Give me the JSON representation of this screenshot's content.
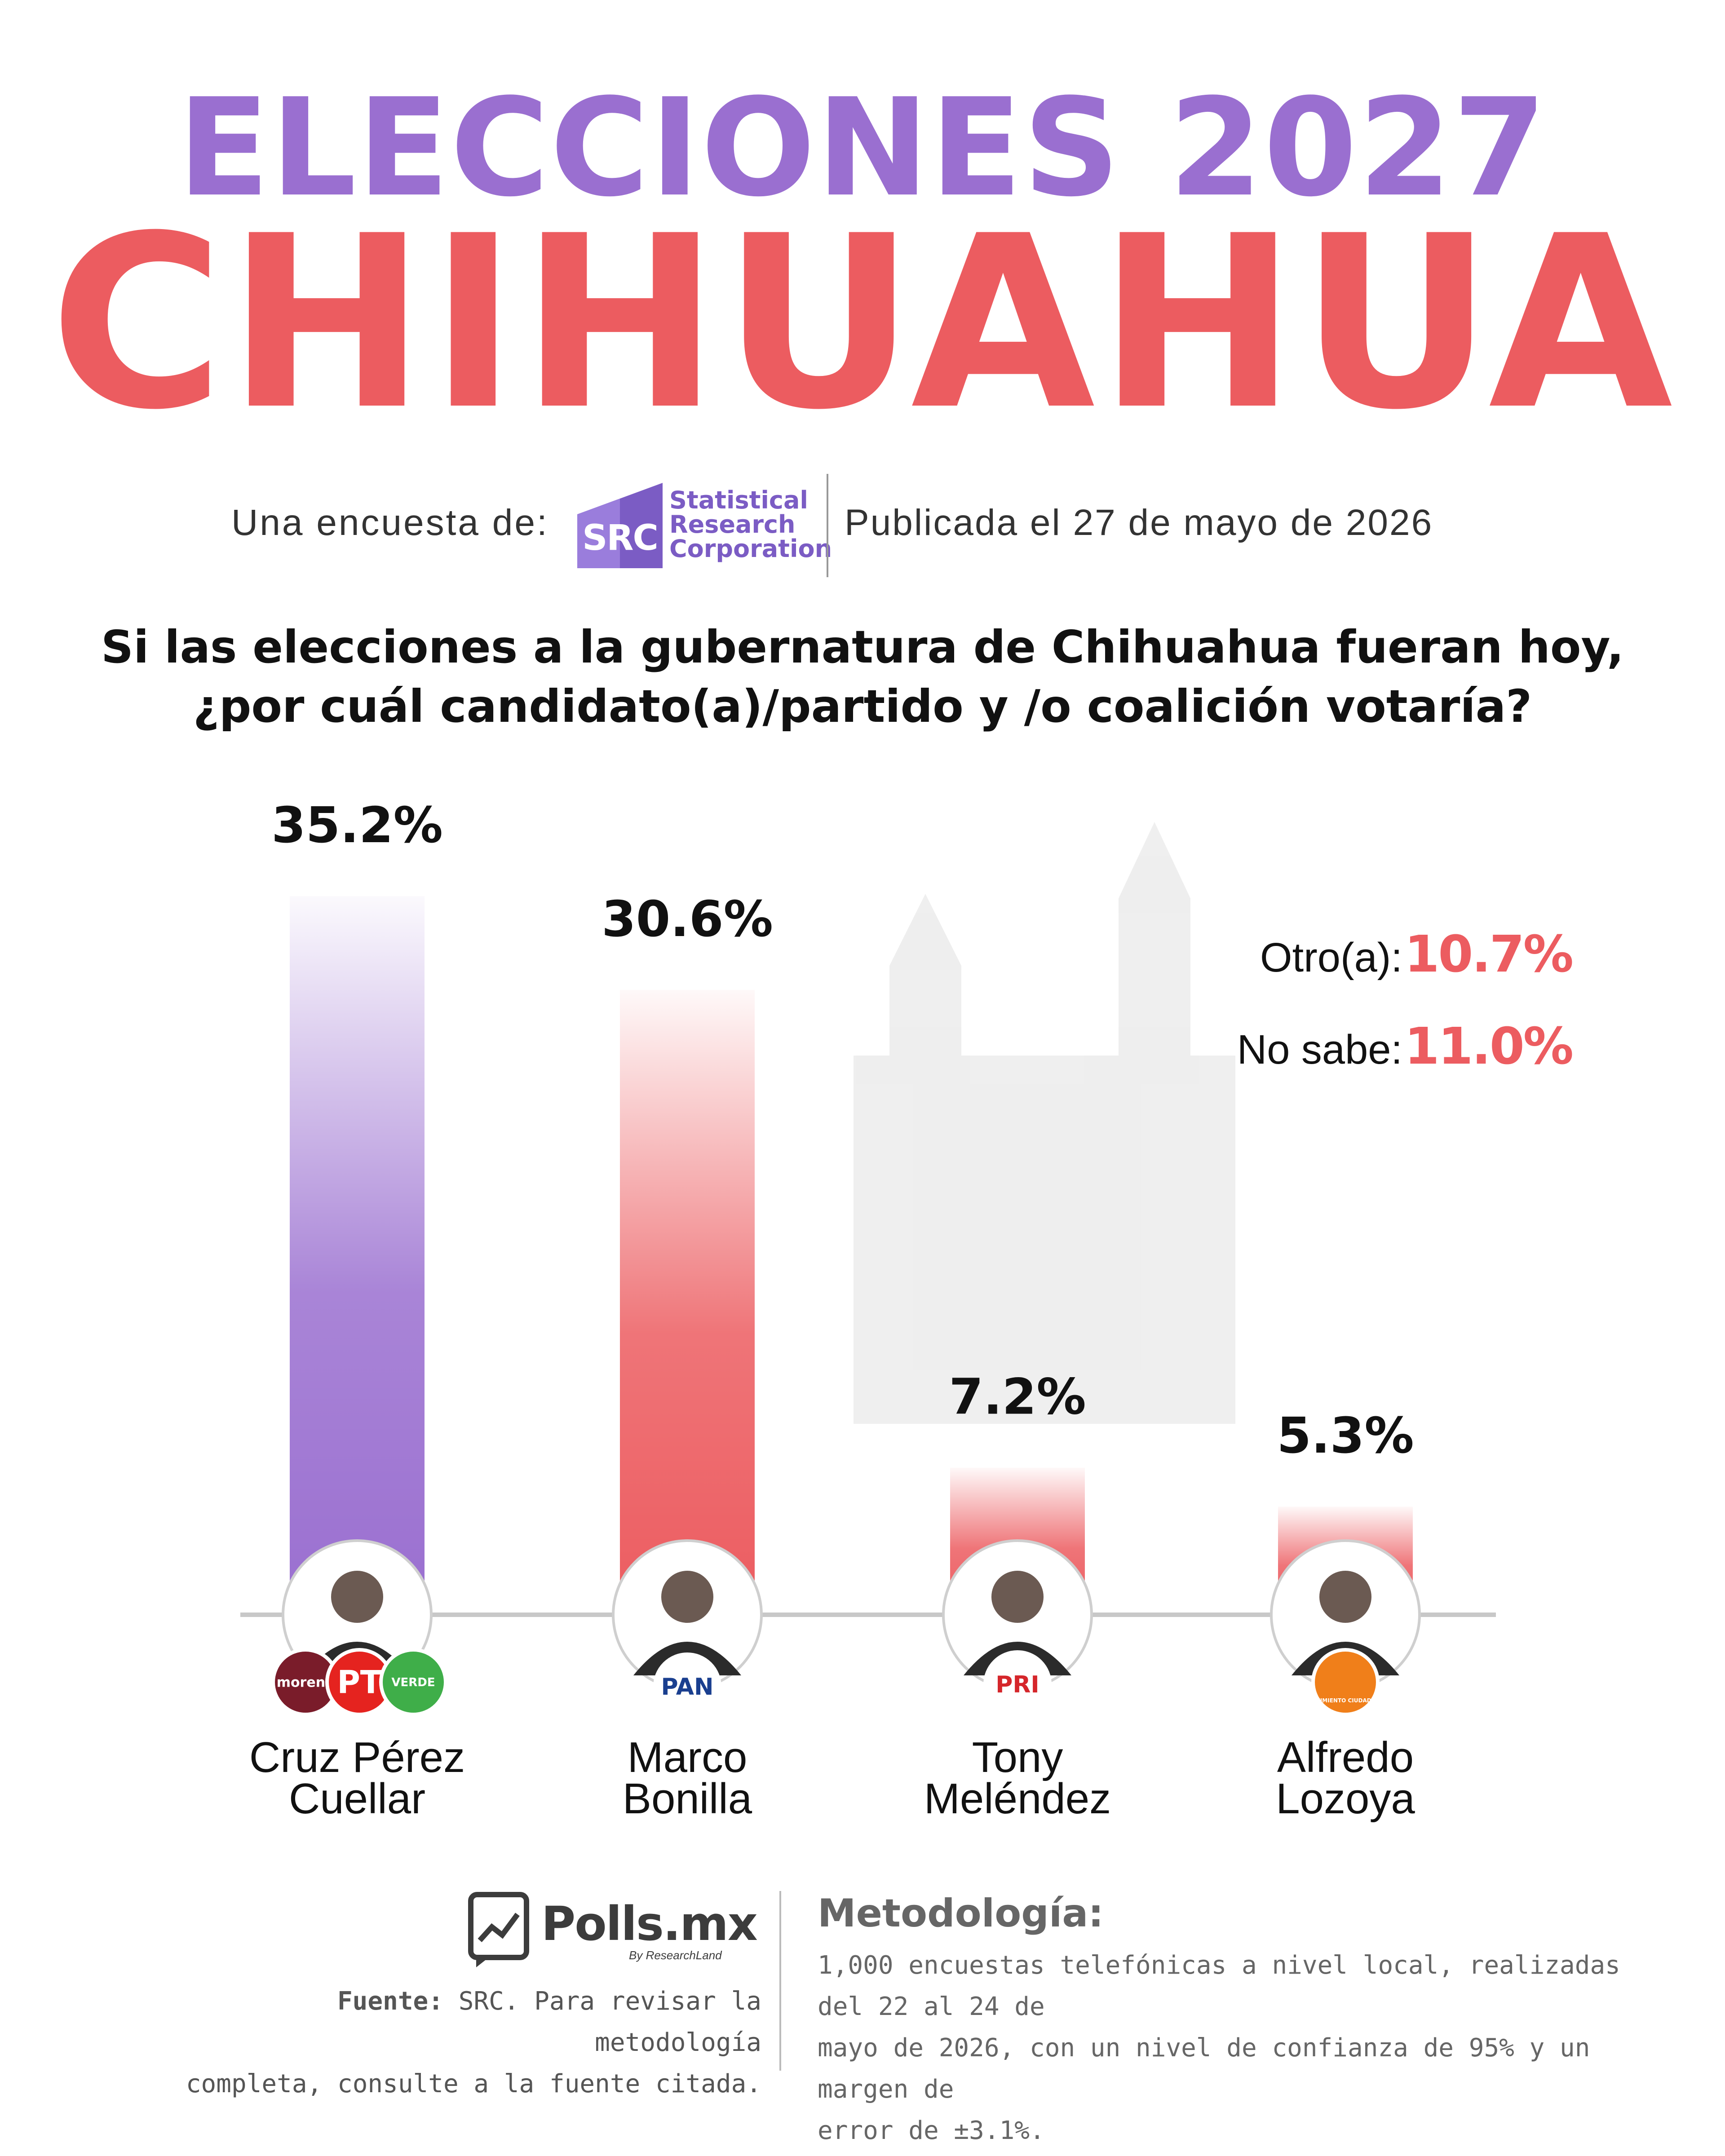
{
  "header": {
    "title_top": "ELECCIONES 2027",
    "title_main": "CHIHUAHUA"
  },
  "byline": {
    "label": "Una encuesta de:",
    "pollster_abbr": "SRC",
    "pollster_name_1": "Statistical",
    "pollster_name_2": "Research",
    "pollster_name_3": "Corporation",
    "published": "Publicada el 27 de mayo de 2026"
  },
  "question": {
    "line1": "Si las elecciones a la gubernatura de Chihuahua fueran hoy,",
    "line2": "¿por cuál candidato(a)/partido y /o coalición votaría?"
  },
  "others": {
    "other_label": "Otro(a):",
    "other_value": "10.7%",
    "unknown_label": "No sabe:",
    "unknown_value": "11.0%"
  },
  "colors": {
    "purple": "#9a6fd0",
    "red": "#ec5c60",
    "morena": "#7a1c2a",
    "pt": "#e5231f",
    "verde": "#3fae49",
    "pan": "#1a3f8f",
    "pri": "#d5262b",
    "mc": "#f07f1a"
  },
  "chart_data": {
    "type": "bar",
    "categories": [
      "Cruz Pérez Cuellar",
      "Marco Bonilla",
      "Tony Meléndez",
      "Alfredo Lozoya"
    ],
    "values": [
      35.2,
      30.6,
      7.2,
      5.3
    ],
    "value_labels": [
      "35.2%",
      "30.6%",
      "7.2%",
      "5.3%"
    ],
    "name_lines": [
      [
        "Cruz Pérez",
        "Cuellar"
      ],
      [
        "Marco",
        "Bonilla"
      ],
      [
        "Tony",
        "Meléndez"
      ],
      [
        "Alfredo",
        "Lozoya"
      ]
    ],
    "bar_colors": [
      "#9a6fd0",
      "#ec5c60",
      "#ec5c60",
      "#ec5c60"
    ],
    "parties": [
      [
        "morena",
        "PT",
        "VERDE"
      ],
      [
        "PAN"
      ],
      [
        "PRI"
      ],
      [
        "MOVIMIENTO CIUDADANO"
      ]
    ],
    "title": "",
    "xlabel": "",
    "ylabel": ""
  },
  "footer": {
    "brand": "Polls.mx",
    "brand_sub": "By ResearchLand",
    "source_label": "Fuente:",
    "source_text_1": " SRC. Para revisar la metodología",
    "source_text_2": "completa, consulte a la fuente citada.",
    "method_title": "Metodología:",
    "method_line1": "1,000 encuestas telefónicas a nivel local, realizadas del 22 al 24 de",
    "method_line2": "mayo de 2026, con un nivel de confianza de 95% y un margen de",
    "method_line3": "error de ±3.1%."
  }
}
